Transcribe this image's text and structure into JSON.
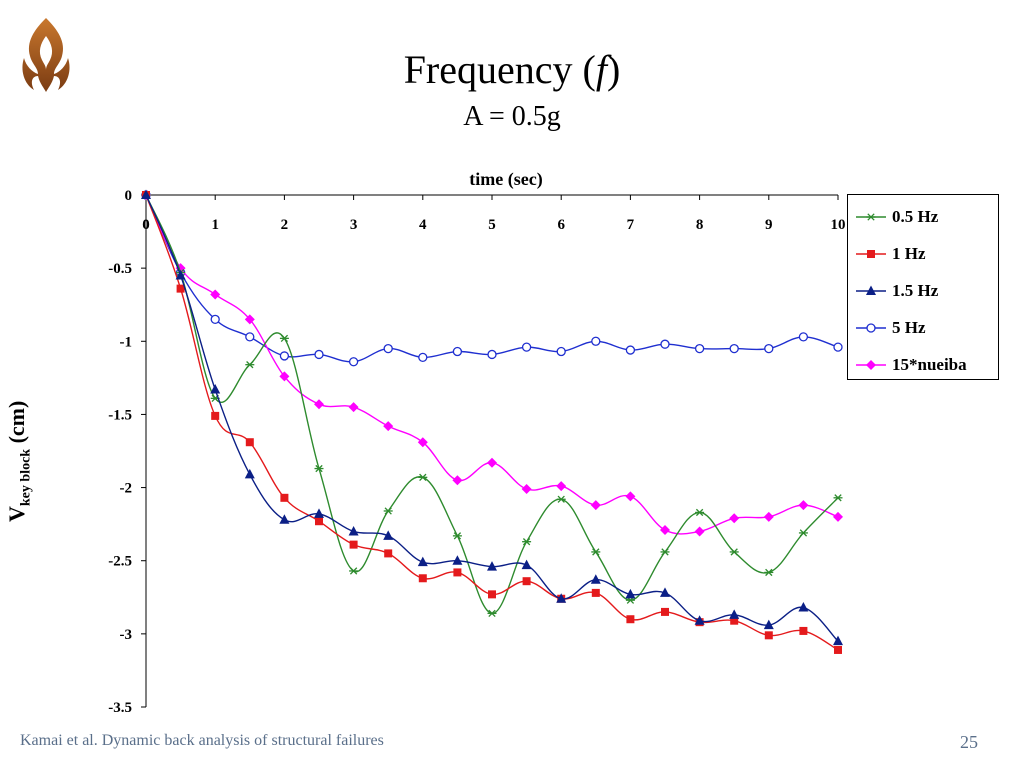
{
  "slide": {
    "title_main": "Frequency (",
    "title_var": "f",
    "title_end": ")",
    "subtitle": "A = 0.5g",
    "footer_left": "Kamai et al. Dynamic back analysis of structural failures",
    "page_number": "25",
    "logo_icon": "flame-emblem-icon"
  },
  "chart_data": {
    "type": "line",
    "title": "",
    "xlabel": "time (sec)",
    "ylabel_main": "V",
    "ylabel_sub": "key block",
    "ylabel_unit": " (cm)",
    "xlim": [
      0,
      10
    ],
    "ylim": [
      -3.5,
      0
    ],
    "x_ticks": [
      "0",
      "1",
      "2",
      "3",
      "4",
      "5",
      "6",
      "7",
      "8",
      "9",
      "10"
    ],
    "y_ticks": [
      "0",
      "-0.5",
      "-1",
      "-1.5",
      "-2",
      "-2.5",
      "-3",
      "-3.5"
    ],
    "x_axis_position": "top",
    "grid": false,
    "legend_position": "right",
    "x": [
      0,
      0.5,
      1,
      1.5,
      2,
      2.5,
      3,
      3.5,
      4,
      4.5,
      5,
      5.5,
      6,
      6.5,
      7,
      7.5,
      8,
      8.5,
      9,
      9.5,
      10
    ],
    "series": [
      {
        "name": "0.5 Hz",
        "color": "#2e8b2e",
        "marker": "asterisk",
        "values": [
          0,
          -0.53,
          -1.39,
          -1.16,
          -0.98,
          -1.87,
          -2.57,
          -2.16,
          -1.93,
          -2.33,
          -2.86,
          -2.37,
          -2.08,
          -2.44,
          -2.77,
          -2.44,
          -2.17,
          -2.44,
          -2.58,
          -2.31,
          -2.07
        ]
      },
      {
        "name": "1 Hz",
        "color": "#e41a1c",
        "marker": "square",
        "values": [
          0,
          -0.64,
          -1.51,
          -1.69,
          -2.07,
          -2.23,
          -2.39,
          -2.45,
          -2.62,
          -2.58,
          -2.73,
          -2.64,
          -2.76,
          -2.72,
          -2.9,
          -2.85,
          -2.92,
          -2.91,
          -3.01,
          -2.98,
          -3.11
        ]
      },
      {
        "name": "1.5 Hz",
        "color": "#0b1f86",
        "marker": "triangle",
        "values": [
          0,
          -0.55,
          -1.33,
          -1.91,
          -2.22,
          -2.18,
          -2.3,
          -2.33,
          -2.51,
          -2.5,
          -2.54,
          -2.53,
          -2.76,
          -2.63,
          -2.73,
          -2.72,
          -2.91,
          -2.87,
          -2.94,
          -2.82,
          -3.05
        ]
      },
      {
        "name": "5 Hz",
        "color": "#1f2fd0",
        "marker": "circle-open",
        "values": [
          0,
          -0.53,
          -0.85,
          -0.97,
          -1.1,
          -1.09,
          -1.14,
          -1.05,
          -1.11,
          -1.07,
          -1.09,
          -1.04,
          -1.07,
          -1.0,
          -1.06,
          -1.02,
          -1.05,
          -1.05,
          -1.05,
          -0.97,
          -1.04
        ]
      },
      {
        "name": "15*nueiba",
        "color": "#ff00ff",
        "marker": "diamond",
        "values": [
          0,
          -0.5,
          -0.68,
          -0.85,
          -1.24,
          -1.43,
          -1.45,
          -1.58,
          -1.69,
          -1.95,
          -1.83,
          -2.01,
          -1.99,
          -2.12,
          -2.06,
          -2.29,
          -2.3,
          -2.21,
          -2.2,
          -2.12,
          -2.2
        ]
      }
    ]
  }
}
